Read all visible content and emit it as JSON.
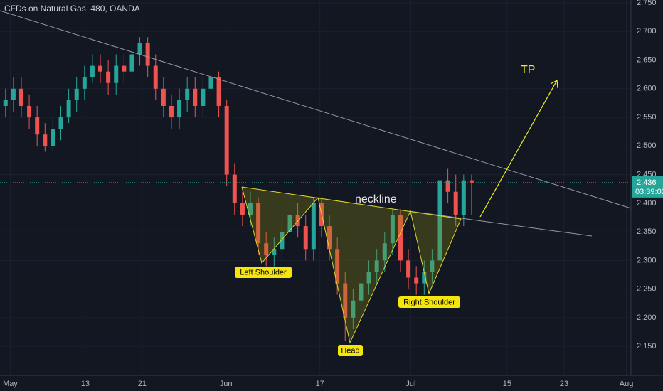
{
  "chart_data": {
    "type": "candlestick",
    "title": "CFDs on Natural Gas, 480, OANDA",
    "up_color": "#26a69a",
    "down_color": "#ef5350",
    "grid": true,
    "open": [
      2.57,
      2.58,
      2.6,
      2.57,
      2.55,
      2.52,
      2.5,
      2.53,
      2.55,
      2.58,
      2.6,
      2.62,
      2.64,
      2.63,
      2.61,
      2.64,
      2.63,
      2.66,
      2.68,
      2.64,
      2.6,
      2.57,
      2.55,
      2.58,
      2.6,
      2.57,
      2.6,
      2.62,
      2.57,
      2.45,
      2.4,
      2.38,
      2.4,
      2.33,
      2.31,
      2.32,
      2.35,
      2.38,
      2.36,
      2.32,
      2.4,
      2.36,
      2.32,
      2.26,
      2.2,
      2.23,
      2.26,
      2.28,
      2.3,
      2.33,
      2.38,
      2.3,
      2.27,
      2.26,
      2.28,
      2.3,
      2.44,
      2.42,
      2.38,
      2.44
    ],
    "high": [
      2.6,
      2.62,
      2.62,
      2.59,
      2.57,
      2.54,
      2.55,
      2.57,
      2.6,
      2.62,
      2.64,
      2.66,
      2.66,
      2.65,
      2.66,
      2.66,
      2.68,
      2.69,
      2.69,
      2.66,
      2.62,
      2.59,
      2.6,
      2.62,
      2.62,
      2.62,
      2.63,
      2.63,
      2.58,
      2.47,
      2.42,
      2.42,
      2.41,
      2.35,
      2.34,
      2.37,
      2.4,
      2.4,
      2.38,
      2.41,
      2.41,
      2.38,
      2.34,
      2.28,
      2.25,
      2.28,
      2.3,
      2.32,
      2.35,
      2.39,
      2.39,
      2.32,
      2.29,
      2.3,
      2.32,
      2.47,
      2.46,
      2.45,
      2.45,
      2.45
    ],
    "low": [
      2.55,
      2.56,
      2.55,
      2.53,
      2.5,
      2.49,
      2.49,
      2.51,
      2.54,
      2.56,
      2.58,
      2.61,
      2.61,
      2.59,
      2.59,
      2.61,
      2.62,
      2.64,
      2.62,
      2.58,
      2.55,
      2.53,
      2.53,
      2.56,
      2.55,
      2.55,
      2.58,
      2.55,
      2.43,
      2.38,
      2.36,
      2.36,
      2.31,
      2.29,
      2.29,
      2.3,
      2.33,
      2.34,
      2.3,
      2.3,
      2.34,
      2.3,
      2.24,
      2.16,
      2.18,
      2.21,
      2.24,
      2.26,
      2.28,
      2.31,
      2.28,
      2.25,
      2.24,
      2.24,
      2.26,
      2.28,
      2.4,
      2.36,
      2.36,
      2.38
    ],
    "close": [
      2.58,
      2.6,
      2.57,
      2.55,
      2.52,
      2.5,
      2.53,
      2.55,
      2.58,
      2.6,
      2.62,
      2.64,
      2.63,
      2.61,
      2.64,
      2.63,
      2.66,
      2.68,
      2.64,
      2.6,
      2.57,
      2.55,
      2.58,
      2.6,
      2.57,
      2.6,
      2.62,
      2.57,
      2.45,
      2.4,
      2.38,
      2.4,
      2.33,
      2.31,
      2.32,
      2.35,
      2.38,
      2.36,
      2.32,
      2.4,
      2.36,
      2.32,
      2.26,
      2.2,
      2.23,
      2.26,
      2.28,
      2.3,
      2.33,
      2.38,
      2.3,
      2.27,
      2.26,
      2.28,
      2.3,
      2.44,
      2.42,
      2.38,
      2.44,
      2.436
    ],
    "xlim": [
      -0.7,
      79
    ],
    "xticks": [
      {
        "value": 0.6,
        "label": "May"
      },
      {
        "value": 10.1,
        "label": "13"
      },
      {
        "value": 17.3,
        "label": "21"
      },
      {
        "value": 27.9,
        "label": "Jun"
      },
      {
        "value": 39.8,
        "label": "17"
      },
      {
        "value": 51.3,
        "label": "Jul"
      },
      {
        "value": 63.5,
        "label": "15"
      },
      {
        "value": 70.7,
        "label": "23"
      },
      {
        "value": 78.6,
        "label": "Aug"
      }
    ],
    "ylim": [
      2.103,
      2.755
    ],
    "yticks": [
      {
        "value": 2.15,
        "label": "2.150"
      },
      {
        "value": 2.2,
        "label": "2.200"
      },
      {
        "value": 2.25,
        "label": "2.250"
      },
      {
        "value": 2.3,
        "label": "2.300"
      },
      {
        "value": 2.35,
        "label": "2.350"
      },
      {
        "value": 2.4,
        "label": "2.400"
      },
      {
        "value": 2.45,
        "label": "2.450"
      },
      {
        "value": 2.5,
        "label": "2.500"
      },
      {
        "value": 2.55,
        "label": "2.550"
      },
      {
        "value": 2.6,
        "label": "2.600"
      },
      {
        "value": 2.65,
        "label": "2.650"
      },
      {
        "value": 2.7,
        "label": "2.700"
      },
      {
        "value": 2.75,
        "label": "2.750"
      }
    ],
    "last_price_label": "2.436",
    "countdown": "03:39:02",
    "annotations": {
      "neckline": "neckline",
      "tp": "TP",
      "left_shoulder": "Left Shoulder",
      "head": "Head",
      "right_shoulder": "Right Shoulder"
    }
  }
}
